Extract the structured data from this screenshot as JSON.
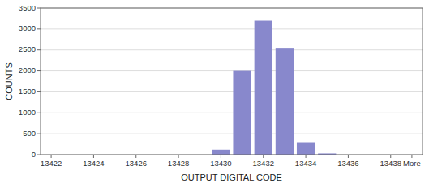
{
  "chart_data": {
    "type": "bar",
    "categories": [
      "13422",
      null,
      "13424",
      null,
      "13426",
      null,
      "13428",
      null,
      "13430",
      null,
      "13432",
      null,
      "13434",
      null,
      "13436",
      null,
      "13438",
      "More"
    ],
    "values": [
      0,
      0,
      0,
      0,
      0,
      0,
      0,
      0,
      120,
      2000,
      3200,
      2550,
      280,
      30,
      0,
      0,
      0,
      0
    ],
    "color": "#8888cc",
    "xlabel": "OUTPUT DIGITAL CODE",
    "ylabel": "COUNTS",
    "ylim": [
      0,
      3500
    ],
    "yticks": [
      0,
      500,
      1000,
      1500,
      2000,
      2500,
      3000,
      3500
    ],
    "grid": true
  }
}
